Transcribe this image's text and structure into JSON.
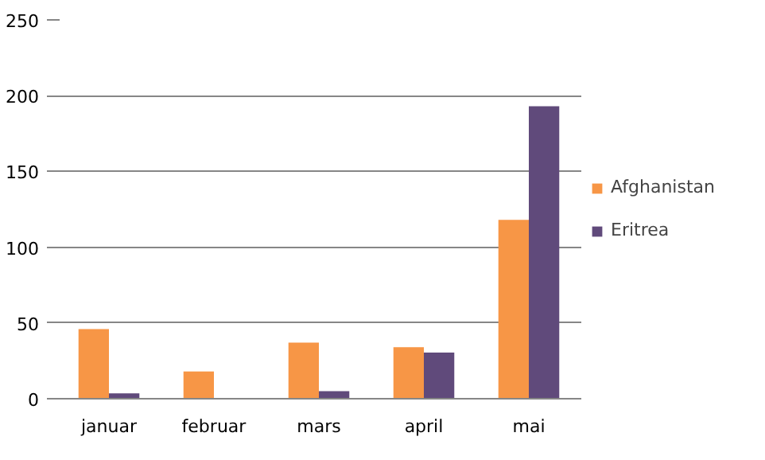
{
  "chart_data": {
    "type": "bar",
    "categories": [
      "januar",
      "februar",
      "mars",
      "april",
      "mai"
    ],
    "series": [
      {
        "name": "Afghanistan",
        "color": "#f79646",
        "values": [
          46,
          18,
          37,
          34,
          118
        ]
      },
      {
        "name": "Eritrea",
        "color": "#604a7b",
        "values": [
          3.5,
          0,
          5,
          30.5,
          193
        ]
      }
    ],
    "ylim": [
      0,
      250
    ],
    "yticks": [
      0,
      50,
      100,
      150,
      200,
      250
    ],
    "grid": "y",
    "legend": "right"
  }
}
